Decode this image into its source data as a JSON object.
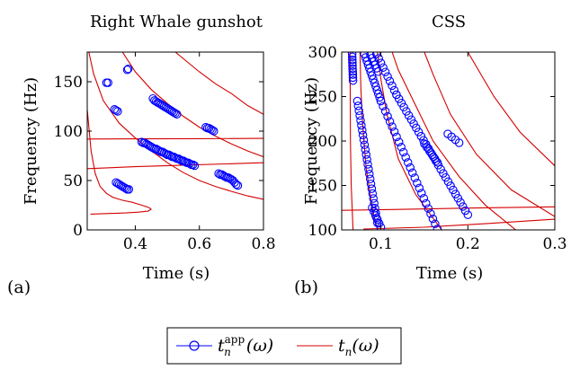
{
  "colors": {
    "marker": "#0000ff",
    "curve": "#d40000",
    "axis": "#000000"
  },
  "legend": {
    "position": "bottom-center",
    "entries": [
      {
        "label": "t",
        "sub": "n",
        "sup": "app",
        "arg": "(ω)",
        "color": "#0000ff",
        "style": "line-circle"
      },
      {
        "label": "t",
        "sub": "n",
        "sup": "",
        "arg": "(ω)",
        "color": "#d40000",
        "style": "line"
      }
    ]
  },
  "chart_data": [
    {
      "type": "scatter",
      "panel_label": "(a)",
      "title": "Right Whale gunshot",
      "xlabel": "Time (s)",
      "ylabel": "Frequency (Hz)",
      "xlim": [
        0.25,
        0.8
      ],
      "ylim": [
        0,
        180
      ],
      "xticks": [
        0.4,
        0.6,
        0.8
      ],
      "yticks": [
        0,
        50,
        100,
        150
      ],
      "xticklabels": [
        "0.4",
        "0.6",
        "0.8"
      ],
      "yticklabels": [
        "0",
        "50",
        "100",
        "150"
      ],
      "grid": false,
      "series": [
        {
          "kind": "markers",
          "style": "circle",
          "points": [
            [
              0.31,
              149
            ],
            [
              0.315,
              149
            ],
            [
              0.375,
              162
            ],
            [
              0.378,
              163
            ],
            [
              0.335,
              122
            ],
            [
              0.34,
              121
            ],
            [
              0.345,
              120
            ],
            [
              0.455,
              133
            ],
            [
              0.46,
              131
            ],
            [
              0.465,
              130
            ],
            [
              0.47,
              129
            ],
            [
              0.475,
              128
            ],
            [
              0.48,
              127
            ],
            [
              0.485,
              126
            ],
            [
              0.49,
              125
            ],
            [
              0.495,
              124
            ],
            [
              0.5,
              123
            ],
            [
              0.505,
              122
            ],
            [
              0.51,
              121
            ],
            [
              0.515,
              120
            ],
            [
              0.52,
              119
            ],
            [
              0.525,
              118
            ],
            [
              0.53,
              117
            ],
            [
              0.42,
              89
            ],
            [
              0.425,
              88
            ],
            [
              0.43,
              88
            ],
            [
              0.435,
              87
            ],
            [
              0.44,
              86
            ],
            [
              0.445,
              85
            ],
            [
              0.45,
              84
            ],
            [
              0.455,
              83
            ],
            [
              0.46,
              82
            ],
            [
              0.465,
              82
            ],
            [
              0.47,
              81
            ],
            [
              0.475,
              80
            ],
            [
              0.48,
              79
            ],
            [
              0.485,
              79
            ],
            [
              0.49,
              78
            ],
            [
              0.495,
              77
            ],
            [
              0.5,
              76
            ],
            [
              0.505,
              76
            ],
            [
              0.51,
              75
            ],
            [
              0.515,
              74
            ],
            [
              0.52,
              74
            ],
            [
              0.525,
              73
            ],
            [
              0.53,
              72
            ],
            [
              0.535,
              72
            ],
            [
              0.54,
              71
            ],
            [
              0.545,
              70
            ],
            [
              0.55,
              70
            ],
            [
              0.555,
              69
            ],
            [
              0.56,
              68
            ],
            [
              0.565,
              68
            ],
            [
              0.57,
              67
            ],
            [
              0.575,
              66
            ],
            [
              0.58,
              66
            ],
            [
              0.585,
              65
            ],
            [
              0.62,
              104
            ],
            [
              0.625,
              103
            ],
            [
              0.63,
              103
            ],
            [
              0.635,
              102
            ],
            [
              0.64,
              101
            ],
            [
              0.645,
              100
            ],
            [
              0.66,
              57
            ],
            [
              0.665,
              56
            ],
            [
              0.67,
              56
            ],
            [
              0.675,
              55
            ],
            [
              0.68,
              54
            ],
            [
              0.685,
              53
            ],
            [
              0.69,
              53
            ],
            [
              0.695,
              52
            ],
            [
              0.7,
              51
            ],
            [
              0.705,
              50
            ],
            [
              0.71,
              48
            ],
            [
              0.715,
              46
            ],
            [
              0.72,
              45
            ],
            [
              0.34,
              48
            ],
            [
              0.345,
              47
            ],
            [
              0.35,
              46
            ],
            [
              0.355,
              45
            ],
            [
              0.36,
              44
            ],
            [
              0.365,
              43
            ],
            [
              0.37,
              42
            ],
            [
              0.375,
              41
            ],
            [
              0.38,
              41
            ]
          ]
        },
        {
          "kind": "curves",
          "style": "line",
          "curves": [
            [
              [
                0.25,
                122
              ],
              [
                0.262,
                80
              ],
              [
                0.275,
                57
              ],
              [
                0.29,
                44
              ],
              [
                0.31,
                37
              ],
              [
                0.33,
                33
              ],
              [
                0.36,
                30
              ],
              [
                0.39,
                28
              ],
              [
                0.42,
                25
              ],
              [
                0.44,
                23
              ],
              [
                0.45,
                21
              ]
            ],
            [
              [
                0.45,
                21
              ],
              [
                0.44,
                19
              ],
              [
                0.41,
                18
              ],
              [
                0.37,
                17.2
              ],
              [
                0.33,
                16.7
              ],
              [
                0.29,
                16.3
              ],
              [
                0.26,
                16
              ]
            ],
            [
              [
                0.25,
                62
              ],
              [
                0.4,
                64
              ],
              [
                0.55,
                65.5
              ],
              [
                0.7,
                67
              ],
              [
                0.8,
                68
              ]
            ],
            [
              [
                0.25,
                92
              ],
              [
                0.4,
                92.2
              ],
              [
                0.6,
                92.4
              ],
              [
                0.8,
                92.6
              ]
            ],
            [
              [
                0.255,
                180
              ],
              [
                0.27,
                158
              ],
              [
                0.3,
                131
              ],
              [
                0.35,
                108
              ],
              [
                0.4,
                93
              ],
              [
                0.45,
                80
              ],
              [
                0.5,
                68
              ],
              [
                0.55,
                58
              ],
              [
                0.6,
                50
              ],
              [
                0.65,
                44
              ],
              [
                0.7,
                39
              ],
              [
                0.75,
                34.5
              ],
              [
                0.8,
                31
              ]
            ],
            [
              [
                0.36,
                180
              ],
              [
                0.4,
                160
              ],
              [
                0.45,
                142
              ],
              [
                0.5,
                128
              ],
              [
                0.55,
                115
              ],
              [
                0.6,
                104
              ],
              [
                0.65,
                95
              ],
              [
                0.7,
                87
              ],
              [
                0.75,
                80
              ],
              [
                0.8,
                74
              ]
            ],
            [
              [
                0.525,
                180
              ],
              [
                0.6,
                160
              ],
              [
                0.65,
                148
              ],
              [
                0.7,
                138
              ],
              [
                0.75,
                126
              ],
              [
                0.8,
                117
              ]
            ]
          ]
        }
      ]
    },
    {
      "type": "scatter",
      "panel_label": "(b)",
      "title": "CSS",
      "xlabel": "Time (s)",
      "ylabel": "Frequency (Hz)",
      "xlim": [
        0.055,
        0.3
      ],
      "ylim": [
        100,
        300
      ],
      "xticks": [
        0.1,
        0.2,
        0.3
      ],
      "yticks": [
        100,
        150,
        200,
        250,
        300
      ],
      "xticklabels": [
        "0.1",
        "0.2",
        "0.3"
      ],
      "yticklabels": [
        "100",
        "150",
        "200",
        "250",
        "300"
      ],
      "grid": false,
      "series": [
        {
          "kind": "markers",
          "style": "circle",
          "tracks": [
            {
              "x0": 0.067,
              "x1": 0.068,
              "y0": 298,
              "y1": 268,
              "n": 10
            },
            {
              "x0": 0.073,
              "x1": 0.096,
              "y0": 245,
              "y1": 108,
              "n": 26
            },
            {
              "x0": 0.081,
              "x1": 0.1,
              "y0": 298,
              "y1": 245,
              "n": 14
            },
            {
              "x0": 0.1,
              "x1": 0.165,
              "y0": 245,
              "y1": 101,
              "n": 26
            },
            {
              "x0": 0.095,
              "x1": 0.118,
              "y0": 298,
              "y1": 252,
              "n": 10
            },
            {
              "x0": 0.118,
              "x1": 0.2,
              "y0": 252,
              "y1": 117,
              "n": 30
            },
            {
              "x0": 0.088,
              "x1": 0.097,
              "y0": 297,
              "y1": 278,
              "n": 6
            },
            {
              "x0": 0.09,
              "x1": 0.1,
              "y0": 125,
              "y1": 103,
              "n": 6
            },
            {
              "x0": 0.15,
              "x1": 0.165,
              "y0": 197,
              "y1": 176,
              "n": 6
            },
            {
              "x0": 0.177,
              "x1": 0.19,
              "y0": 208,
              "y1": 198,
              "n": 4
            }
          ]
        },
        {
          "kind": "curves",
          "style": "line",
          "curves": [
            [
              [
                0.068,
                100
              ],
              [
                0.066,
                150
              ],
              [
                0.065,
                200
              ],
              [
                0.0648,
                250
              ],
              [
                0.0646,
                300
              ]
            ],
            [
              [
                0.096,
                100
              ],
              [
                0.09,
                125
              ],
              [
                0.083,
                170
              ],
              [
                0.079,
                220
              ],
              [
                0.077,
                260
              ],
              [
                0.076,
                300
              ]
            ],
            [
              [
                0.17,
                100
              ],
              [
                0.14,
                140
              ],
              [
                0.12,
                180
              ],
              [
                0.107,
                230
              ],
              [
                0.1,
                270
              ],
              [
                0.096,
                300
              ]
            ],
            [
              [
                0.255,
                100
              ],
              [
                0.22,
                128
              ],
              [
                0.19,
                160
              ],
              [
                0.16,
                200
              ],
              [
                0.14,
                240
              ],
              [
                0.12,
                280
              ],
              [
                0.113,
                300
              ]
            ],
            [
              [
                0.3,
                115
              ],
              [
                0.25,
                145
              ],
              [
                0.21,
                185
              ],
              [
                0.18,
                230
              ],
              [
                0.16,
                275
              ],
              [
                0.15,
                300
              ]
            ],
            [
              [
                0.3,
                172
              ],
              [
                0.26,
                210
              ],
              [
                0.23,
                250
              ],
              [
                0.2,
                300
              ]
            ],
            [
              [
                0.055,
                122
              ],
              [
                0.12,
                123
              ],
              [
                0.2,
                124.5
              ],
              [
                0.3,
                126
              ]
            ],
            [
              [
                0.08,
                101
              ],
              [
                0.15,
                103
              ],
              [
                0.22,
                107
              ],
              [
                0.3,
                112
              ]
            ]
          ]
        }
      ]
    }
  ]
}
